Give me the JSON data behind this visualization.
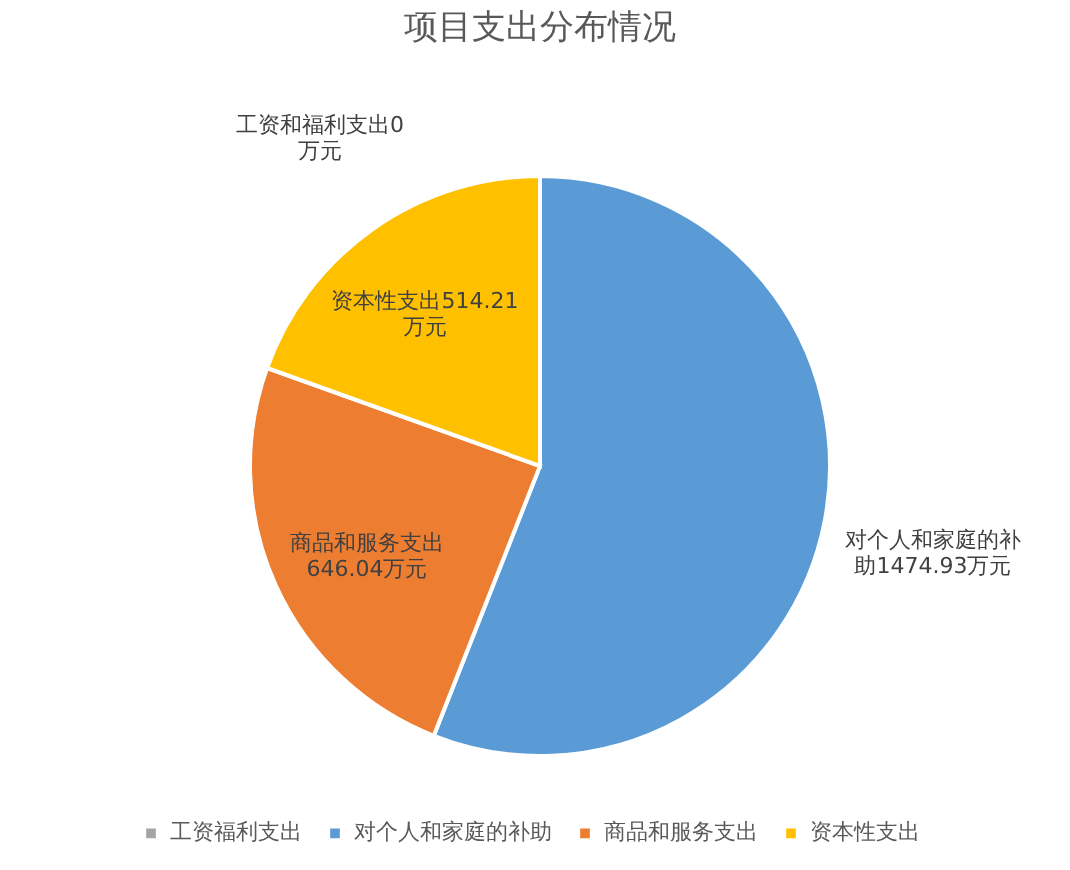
{
  "chart_data": {
    "type": "pie",
    "title": "项目支出分布情况",
    "categories": [
      "工资福利支出",
      "对个人和家庭的补助",
      "商品和服务支出",
      "资本性支出"
    ],
    "values": [
      0,
      1474.93,
      646.04,
      514.21
    ],
    "colors": [
      "#a5a5a5",
      "#5b9bd5",
      "#ed7d31",
      "#ffc000"
    ],
    "value_labels": [
      "工资和福利支出0万元",
      "对个人和家庭的补助1474.93万元",
      "商品和服务支出646.04万元",
      "资本性支出514.21万元"
    ],
    "legend": "bottom"
  }
}
